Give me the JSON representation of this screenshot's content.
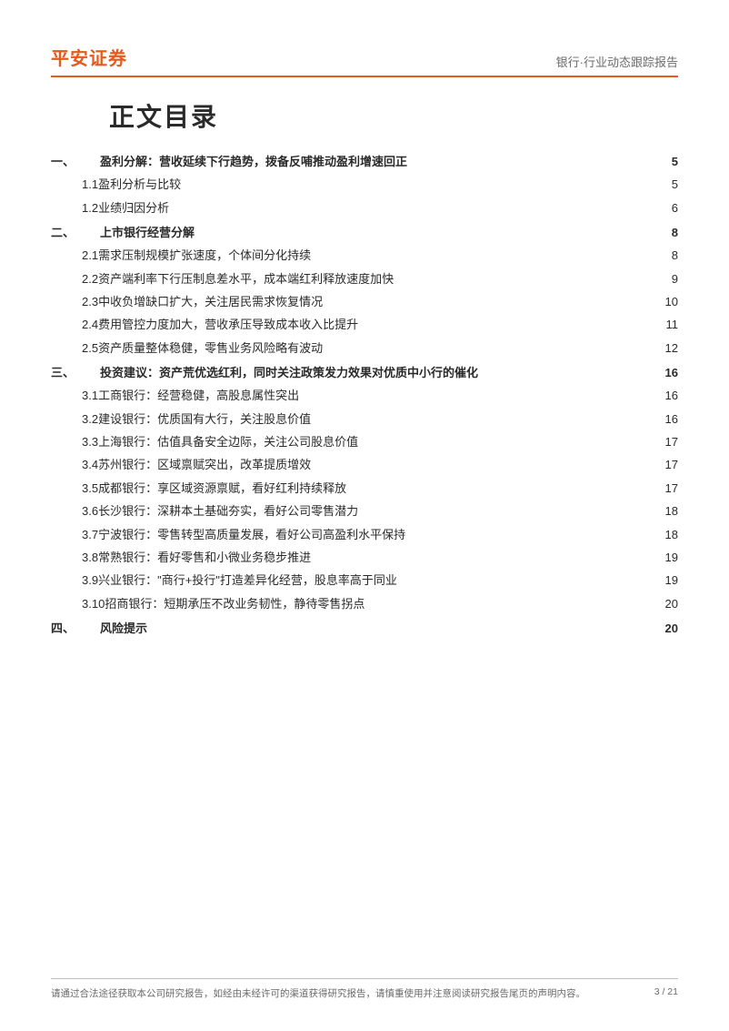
{
  "header": {
    "brand": "平安证券",
    "doc_type": "银行·行业动态跟踪报告"
  },
  "toc_title": "正文目录",
  "colors": {
    "accent": "#e85a1a",
    "text": "#2a2a2a",
    "muted": "#6b6b6b",
    "rule": "#bfbfbf",
    "background": "#ffffff"
  },
  "typography": {
    "brand_fontsize_pt": 15,
    "brand_weight": 700,
    "title_fontsize_pt": 21,
    "title_weight": 700,
    "body_fontsize_pt": 10,
    "footer_fontsize_pt": 8
  },
  "toc": [
    {
      "level": 1,
      "num": "一、",
      "title": "盈利分解：营收延续下行趋势，拨备反哺推动盈利增速回正",
      "page": "5"
    },
    {
      "level": 2,
      "num": "1.1",
      "title": "盈利分析与比较",
      "page": "5"
    },
    {
      "level": 2,
      "num": "1.2",
      "title": "业绩归因分析",
      "page": "6"
    },
    {
      "level": 1,
      "num": "二、",
      "title": "上市银行经营分解",
      "page": "8"
    },
    {
      "level": 2,
      "num": "2.1",
      "title": "需求压制规模扩张速度，个体间分化持续",
      "page": "8"
    },
    {
      "level": 2,
      "num": "2.2",
      "title": "资产端利率下行压制息差水平，成本端红利释放速度加快",
      "page": "9"
    },
    {
      "level": 2,
      "num": "2.3",
      "title": "中收负增缺口扩大，关注居民需求恢复情况",
      "page": "10"
    },
    {
      "level": 2,
      "num": "2.4",
      "title": "费用管控力度加大，营收承压导致成本收入比提升",
      "page": "11"
    },
    {
      "level": 2,
      "num": "2.5",
      "title": "资产质量整体稳健，零售业务风险略有波动",
      "page": "12"
    },
    {
      "level": 1,
      "num": "三、",
      "title": "投资建议：资产荒优选红利，同时关注政策发力效果对优质中小行的催化",
      "page": "16"
    },
    {
      "level": 2,
      "num": "3.1",
      "title": "工商银行：经营稳健，高股息属性突出",
      "page": "16"
    },
    {
      "level": 2,
      "num": "3.2",
      "title": "建设银行：优质国有大行，关注股息价值",
      "page": "16"
    },
    {
      "level": 2,
      "num": "3.3",
      "title": "上海银行：估值具备安全边际，关注公司股息价值",
      "page": "17"
    },
    {
      "level": 2,
      "num": "3.4",
      "title": "苏州银行：区域禀赋突出，改革提质增效",
      "page": "17"
    },
    {
      "level": 2,
      "num": "3.5",
      "title": "成都银行：享区域资源禀赋，看好红利持续释放",
      "page": "17"
    },
    {
      "level": 2,
      "num": "3.6",
      "title": "长沙银行：深耕本土基础夯实，看好公司零售潜力",
      "page": "18"
    },
    {
      "level": 2,
      "num": "3.7",
      "title": "宁波银行：零售转型高质量发展，看好公司高盈利水平保持",
      "page": "18"
    },
    {
      "level": 2,
      "num": "3.8",
      "title": "常熟银行：看好零售和小微业务稳步推进",
      "page": "19"
    },
    {
      "level": 2,
      "num": "3.9",
      "title": "兴业银行：\"商行+投行\"打造差异化经营，股息率高于同业",
      "page": "19"
    },
    {
      "level": 2,
      "num": "3.10",
      "title": "招商银行：短期承压不改业务韧性，静待零售拐点",
      "page": "20"
    },
    {
      "level": 1,
      "num": "四、",
      "title": "风险提示",
      "page": "20"
    }
  ],
  "footer": {
    "disclaimer": "请通过合法途径获取本公司研究报告，如经由未经许可的渠道获得研究报告，请慎重使用并注意阅读研究报告尾页的声明内容。",
    "page_indicator": "3 / 21"
  }
}
